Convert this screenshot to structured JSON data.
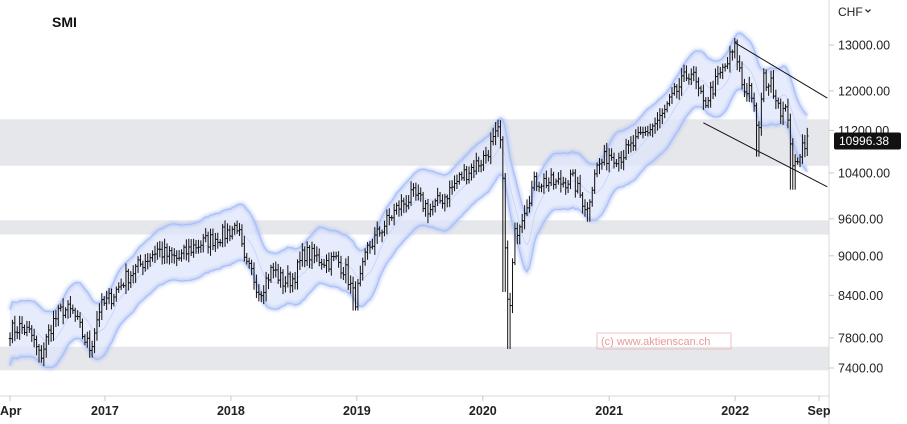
{
  "chart_data": {
    "type": "ohlc",
    "title": "SMI",
    "currency_label": "CHF",
    "currency_chevron_icon": "chevron-down-icon",
    "last_price": "10996.38",
    "watermark": "(c) www.aktienscan.ch",
    "y_scale": "log",
    "y_range": [
      7200,
      13900
    ],
    "y_ticks": [
      "13000.00",
      "12000.00",
      "11200.00",
      "10400.00",
      "9600.00",
      "9000.00",
      "8400.00",
      "7800.00",
      "7400.00"
    ],
    "x_range": [
      "2016-04-01",
      "2022-09-25"
    ],
    "x_ticks": [
      {
        "label": "Apr",
        "date": "2016-04-01"
      },
      {
        "label": "2017",
        "date": "2017-01-01"
      },
      {
        "label": "2018",
        "date": "2018-01-01"
      },
      {
        "label": "2019",
        "date": "2019-01-01"
      },
      {
        "label": "2020",
        "date": "2020-01-01"
      },
      {
        "label": "2021",
        "date": "2021-01-01"
      },
      {
        "label": "2022",
        "date": "2022-01-01"
      },
      {
        "label": "Sep",
        "date": "2022-09-01"
      }
    ],
    "zones": [
      {
        "low": 10530,
        "high": 11420
      },
      {
        "low": 9340,
        "high": 9575
      },
      {
        "low": 7370,
        "high": 7680
      }
    ],
    "channel_lines": [
      {
        "from": [
          "2022-01-01",
          13050
        ],
        "to": [
          "2022-09-25",
          11850
        ]
      },
      {
        "from": [
          "2021-10-01",
          11350
        ],
        "to": [
          "2022-09-25",
          10150
        ]
      }
    ],
    "bands": {
      "upper_pct": 5.2,
      "lower_pct": 4.6
    },
    "weekly_closes": {
      "start": "2016-04-01",
      "step_days": 7,
      "anchors": [
        [
          "2016-04-01",
          7900
        ],
        [
          "2016-05-01",
          7950
        ],
        [
          "2016-06-01",
          7850
        ],
        [
          "2016-06-27",
          7530
        ],
        [
          "2016-08-01",
          8000
        ],
        [
          "2016-09-01",
          8200
        ],
        [
          "2016-10-01",
          8150
        ],
        [
          "2016-11-01",
          7800
        ],
        [
          "2016-11-20",
          7650
        ],
        [
          "2016-12-15",
          8200
        ],
        [
          "2017-01-15",
          8350
        ],
        [
          "2017-03-01",
          8650
        ],
        [
          "2017-05-01",
          8950
        ],
        [
          "2017-06-01",
          9100
        ],
        [
          "2017-07-01",
          9000
        ],
        [
          "2017-08-01",
          8950
        ],
        [
          "2017-09-15",
          9150
        ],
        [
          "2017-11-01",
          9250
        ],
        [
          "2017-12-15",
          9350
        ],
        [
          "2018-01-20",
          9500
        ],
        [
          "2018-02-10",
          8850
        ],
        [
          "2018-03-01",
          8750
        ],
        [
          "2018-03-25",
          8450
        ],
        [
          "2018-05-01",
          8800
        ],
        [
          "2018-06-01",
          8600
        ],
        [
          "2018-07-01",
          8650
        ],
        [
          "2018-08-01",
          9050
        ],
        [
          "2018-09-15",
          8950
        ],
        [
          "2018-10-10",
          8900
        ],
        [
          "2018-11-01",
          8950
        ],
        [
          "2018-12-01",
          8750
        ],
        [
          "2018-12-27",
          8320
        ],
        [
          "2019-02-01",
          9100
        ],
        [
          "2019-03-15",
          9450
        ],
        [
          "2019-05-01",
          9800
        ],
        [
          "2019-06-15",
          10000
        ],
        [
          "2019-08-01",
          9750
        ],
        [
          "2019-09-15",
          10000
        ],
        [
          "2019-11-01",
          10350
        ],
        [
          "2020-01-01",
          10650
        ],
        [
          "2020-02-19",
          11200
        ],
        [
          "2020-03-02",
          9850
        ],
        [
          "2020-03-16",
          7900
        ],
        [
          "2020-04-01",
          9300
        ],
        [
          "2020-05-01",
          9800
        ],
        [
          "2020-06-01",
          10250
        ],
        [
          "2020-07-01",
          10250
        ],
        [
          "2020-08-01",
          10200
        ],
        [
          "2020-09-15",
          10300
        ],
        [
          "2020-10-30",
          9750
        ],
        [
          "2020-11-20",
          10450
        ],
        [
          "2021-01-01",
          10750
        ],
        [
          "2021-02-01",
          10700
        ],
        [
          "2021-03-01",
          10850
        ],
        [
          "2021-04-15",
          11150
        ],
        [
          "2021-06-01",
          11450
        ],
        [
          "2021-07-15",
          12000
        ],
        [
          "2021-08-25",
          12450
        ],
        [
          "2021-10-01",
          11700
        ],
        [
          "2021-11-15",
          12300
        ],
        [
          "2021-12-10",
          12600
        ],
        [
          "2022-01-01",
          12950
        ],
        [
          "2022-01-25",
          12000
        ],
        [
          "2022-02-15",
          12100
        ],
        [
          "2022-03-07",
          11050
        ],
        [
          "2022-03-25",
          12250
        ],
        [
          "2022-04-20",
          12100
        ],
        [
          "2022-05-15",
          11600
        ],
        [
          "2022-06-05",
          11500
        ],
        [
          "2022-06-17",
          10400
        ],
        [
          "2022-07-01",
          10700
        ],
        [
          "2022-07-20",
          11000
        ],
        [
          "2022-07-29",
          10996
        ]
      ]
    }
  }
}
